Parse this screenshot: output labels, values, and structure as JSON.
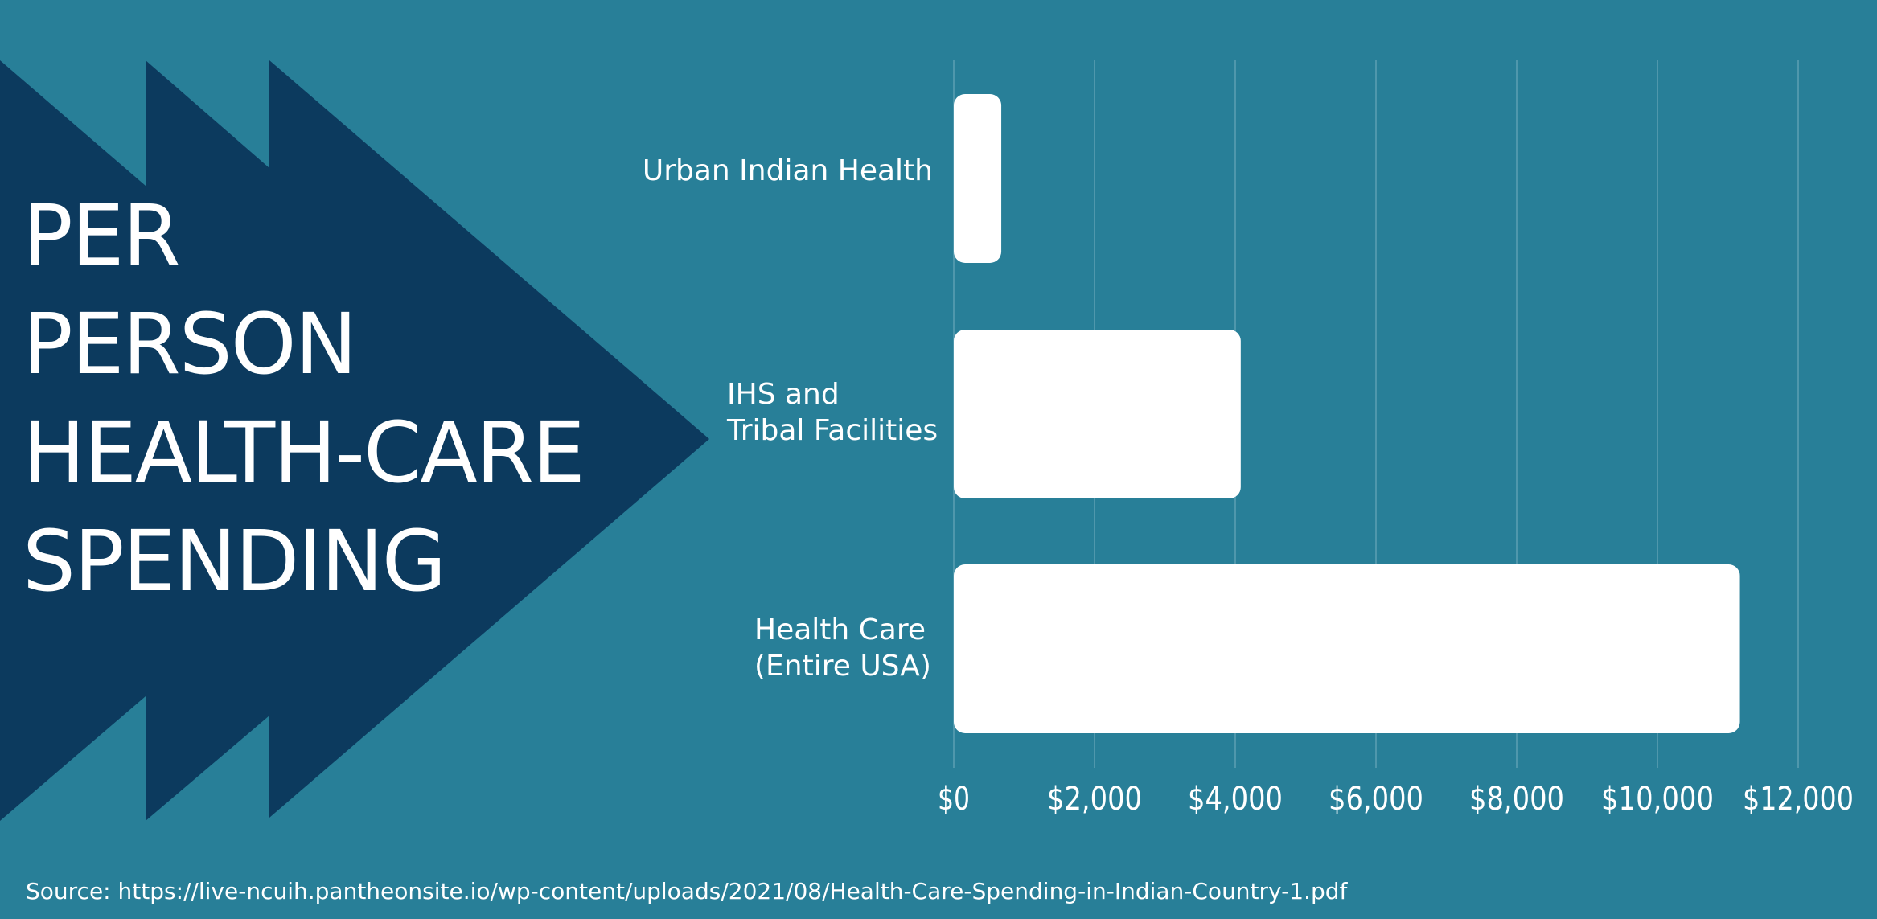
{
  "colors": {
    "background": "#287f98",
    "arrow": "#0c3a5e",
    "bar": "#ffffff",
    "text": "#ffffff",
    "gridline": "#5c9fb3"
  },
  "title": {
    "lines": [
      "PER",
      "PERSON",
      "HEALTH-CARE",
      "SPENDING"
    ]
  },
  "source": "Source: https://live-ncuih.pantheonsite.io/wp-content/uploads/2021/08/Health-Care-Spending-in-Indian-Country-1.pdf",
  "chart_data": {
    "type": "bar",
    "orientation": "horizontal",
    "title": "PER PERSON HEALTH-CARE SPENDING",
    "categories": [
      [
        "Urban Indian Health"
      ],
      [
        "IHS and",
        "Tribal Facilities"
      ],
      [
        "Health Care",
        "(Entire USA)"
      ]
    ],
    "values": [
      675,
      4078,
      11172
    ],
    "xlim": [
      0,
      12000
    ],
    "xticks": [
      0,
      2000,
      4000,
      6000,
      8000,
      10000,
      12000
    ],
    "xtick_labels": [
      "$0",
      "$2,000",
      "$4,000",
      "$6,000",
      "$8,000",
      "$10,000",
      "$12,000"
    ],
    "grid": true,
    "legend": "none"
  }
}
